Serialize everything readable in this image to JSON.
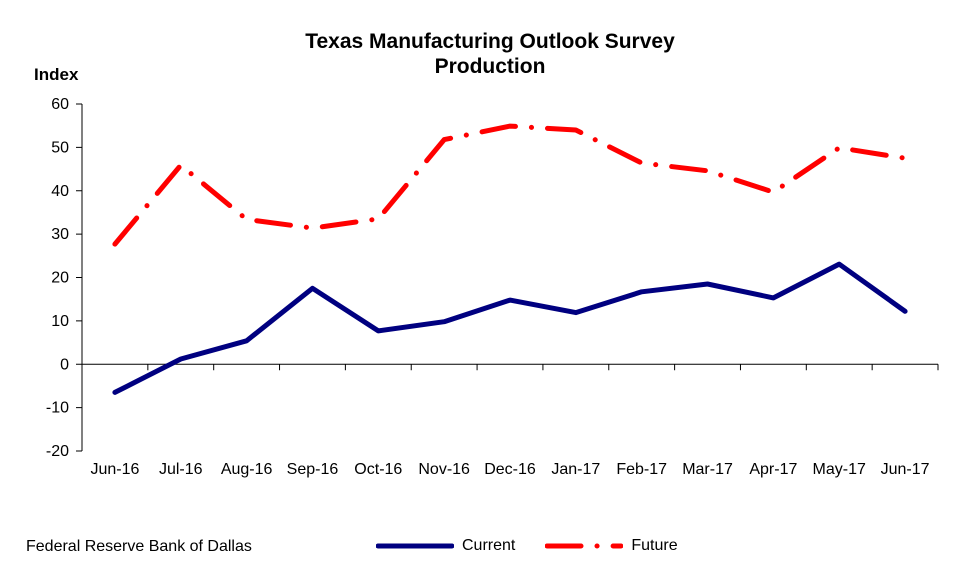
{
  "chart_data": {
    "type": "line",
    "title": "Texas Manufacturing Outlook Survey",
    "subtitle": "Production",
    "ylabel": "Index",
    "xlabel": "",
    "ylim": [
      -20,
      60
    ],
    "yticks": [
      -20,
      -10,
      0,
      10,
      20,
      30,
      40,
      50,
      60
    ],
    "categories": [
      "Jun-16",
      "Jul-16",
      "Aug-16",
      "Sep-16",
      "Oct-16",
      "Nov-16",
      "Dec-16",
      "Jan-17",
      "Feb-17",
      "Mar-17",
      "Apr-17",
      "May-17",
      "Jun-17"
    ],
    "grid": false,
    "legend": "bottom",
    "series": [
      {
        "name": "Current",
        "values": [
          -6.5,
          1.2,
          5.4,
          17.5,
          7.7,
          9.8,
          14.8,
          11.9,
          16.7,
          18.5,
          15.3,
          23.1,
          12.2
        ],
        "color": "#000080",
        "style": "solid"
      },
      {
        "name": "Future",
        "values": [
          27.7,
          45.9,
          33.4,
          31.4,
          33.5,
          51.8,
          54.9,
          54.0,
          46.4,
          44.6,
          39.7,
          49.9,
          47.5
        ],
        "color": "#ff0000",
        "style": "dash-dot"
      }
    ]
  },
  "footer": "Federal Reserve Bank of Dallas"
}
